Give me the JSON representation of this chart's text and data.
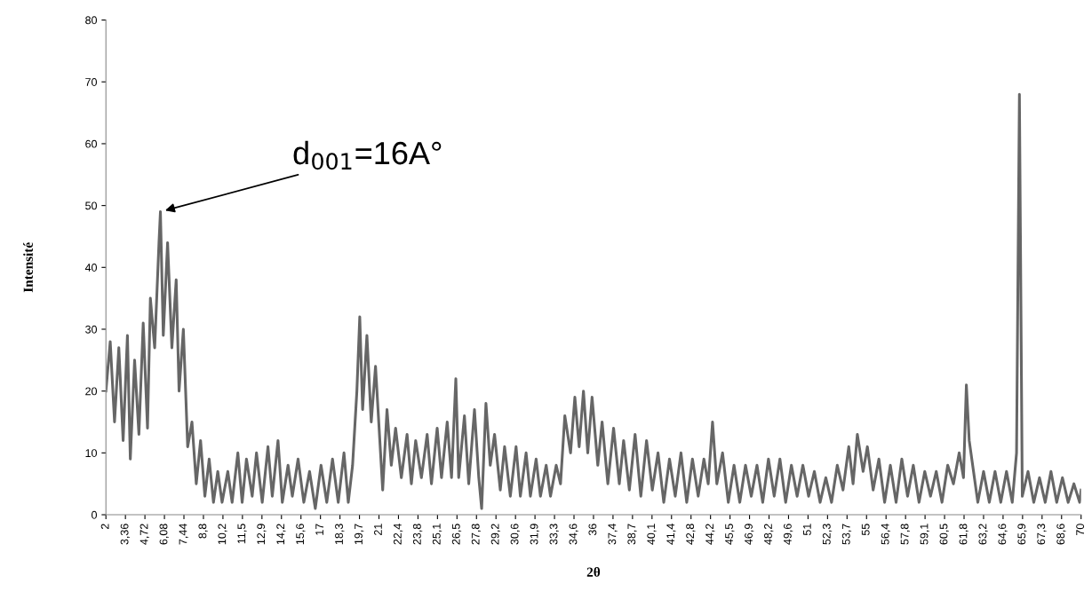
{
  "chart_data": {
    "type": "line",
    "xlabel": "2θ",
    "ylabel": "Intensité",
    "annotations": [
      {
        "text": "d$_{001}$=16A°",
        "x": 5.8,
        "y": 49
      }
    ],
    "xlim": [
      2,
      70
    ],
    "ylim": [
      0,
      80
    ],
    "xticks": [
      2,
      {
        "value": 3.36,
        "label": "3,36"
      },
      {
        "value": 4.72,
        "label": "4,72"
      },
      {
        "value": 6.08,
        "label": "6,08"
      },
      {
        "value": 7.44,
        "label": "7,44"
      },
      {
        "value": 8.8,
        "label": "8,8"
      },
      {
        "value": 10.16,
        "label": "10,2"
      },
      {
        "value": 11.52,
        "label": "11,5"
      },
      {
        "value": 12.88,
        "label": "12,9"
      },
      {
        "value": 14.24,
        "label": "14,2"
      },
      {
        "value": 15.6,
        "label": "15,6"
      },
      {
        "value": 16.96,
        "label": "17"
      },
      {
        "value": 18.32,
        "label": "18,3"
      },
      {
        "value": 19.68,
        "label": "19,7"
      },
      {
        "value": 21.04,
        "label": "21"
      },
      {
        "value": 22.4,
        "label": "22,4"
      },
      {
        "value": 23.76,
        "label": "23,8"
      },
      {
        "value": 25.12,
        "label": "25,1"
      },
      {
        "value": 26.48,
        "label": "26,5"
      },
      {
        "value": 27.84,
        "label": "27,8"
      },
      {
        "value": 29.2,
        "label": "29,2"
      },
      {
        "value": 30.56,
        "label": "30,6"
      },
      {
        "value": 31.92,
        "label": "31,9"
      },
      {
        "value": 33.28,
        "label": "33,3"
      },
      {
        "value": 34.64,
        "label": "34,6"
      },
      36,
      {
        "value": 37.36,
        "label": "37,4"
      },
      {
        "value": 38.72,
        "label": "38,7"
      },
      {
        "value": 40.08,
        "label": "40,1"
      },
      {
        "value": 41.44,
        "label": "41,4"
      },
      {
        "value": 42.8,
        "label": "42,8"
      },
      {
        "value": 44.16,
        "label": "44,2"
      },
      {
        "value": 45.52,
        "label": "45,5"
      },
      {
        "value": 46.88,
        "label": "46,9"
      },
      {
        "value": 48.24,
        "label": "48,2"
      },
      {
        "value": 49.6,
        "label": "49,6"
      },
      {
        "value": 50.96,
        "label": "51"
      },
      {
        "value": 52.32,
        "label": "52,3"
      },
      {
        "value": 53.68,
        "label": "53,7"
      },
      {
        "value": 55.04,
        "label": "55"
      },
      {
        "value": 56.4,
        "label": "56,4"
      },
      {
        "value": 57.76,
        "label": "57,8"
      },
      {
        "value": 59.12,
        "label": "59,1"
      },
      {
        "value": 60.48,
        "label": "60,5"
      },
      {
        "value": 61.84,
        "label": "61,8"
      },
      {
        "value": 63.2,
        "label": "63,2"
      },
      {
        "value": 64.56,
        "label": "64,6"
      },
      {
        "value": 65.92,
        "label": "65,9"
      },
      {
        "value": 67.28,
        "label": "67,3"
      },
      {
        "value": 68.64,
        "label": "68,6"
      },
      70
    ],
    "yticks": [
      0,
      10,
      20,
      30,
      40,
      50,
      60,
      70,
      80
    ],
    "series": [
      {
        "color": "#666666",
        "x": [
          2.0,
          2.3,
          2.6,
          2.9,
          3.2,
          3.5,
          3.7,
          4.0,
          4.3,
          4.6,
          4.9,
          5.1,
          5.4,
          5.7,
          5.8,
          6.0,
          6.3,
          6.6,
          6.9,
          7.1,
          7.4,
          7.7,
          8.0,
          8.3,
          8.6,
          8.9,
          9.2,
          9.5,
          9.8,
          10.1,
          10.5,
          10.8,
          11.2,
          11.5,
          11.8,
          12.2,
          12.5,
          12.9,
          13.3,
          13.6,
          14.0,
          14.3,
          14.7,
          15.0,
          15.4,
          15.8,
          16.2,
          16.6,
          17.0,
          17.4,
          17.8,
          18.2,
          18.6,
          18.9,
          19.2,
          19.5,
          19.7,
          19.9,
          20.2,
          20.5,
          20.8,
          21.1,
          21.3,
          21.6,
          21.9,
          22.2,
          22.6,
          23.0,
          23.3,
          23.6,
          24.0,
          24.4,
          24.7,
          25.1,
          25.4,
          25.8,
          26.1,
          26.4,
          26.6,
          27.0,
          27.3,
          27.7,
          28.0,
          28.2,
          28.5,
          28.8,
          29.1,
          29.5,
          29.8,
          30.2,
          30.6,
          30.9,
          31.3,
          31.6,
          32.0,
          32.3,
          32.7,
          33.0,
          33.4,
          33.7,
          34.0,
          34.4,
          34.7,
          35.0,
          35.3,
          35.6,
          35.9,
          36.3,
          36.6,
          37.0,
          37.4,
          37.8,
          38.1,
          38.5,
          38.9,
          39.3,
          39.7,
          40.1,
          40.5,
          40.9,
          41.3,
          41.7,
          42.1,
          42.5,
          42.9,
          43.3,
          43.7,
          44.0,
          44.3,
          44.6,
          45.0,
          45.4,
          45.8,
          46.2,
          46.6,
          47.0,
          47.4,
          47.8,
          48.2,
          48.6,
          49.0,
          49.4,
          49.8,
          50.2,
          50.6,
          51.0,
          51.4,
          51.8,
          52.2,
          52.6,
          53.0,
          53.4,
          53.8,
          54.1,
          54.4,
          54.8,
          55.1,
          55.5,
          55.9,
          56.3,
          56.7,
          57.1,
          57.5,
          57.9,
          58.3,
          58.7,
          59.1,
          59.5,
          59.9,
          60.3,
          60.7,
          61.1,
          61.5,
          61.8,
          62.0,
          62.2,
          62.5,
          62.8,
          63.2,
          63.6,
          64.0,
          64.4,
          64.8,
          65.2,
          65.5,
          65.7,
          65.9,
          66.3,
          66.7,
          67.1,
          67.5,
          67.9,
          68.3,
          68.7,
          69.1,
          69.5,
          69.9,
          70.0
        ],
        "values": [
          20,
          28,
          15,
          27,
          12,
          29,
          9,
          25,
          13,
          31,
          14,
          35,
          27,
          44,
          49,
          29,
          44,
          27,
          38,
          20,
          30,
          11,
          15,
          5,
          12,
          3,
          9,
          2,
          7,
          2,
          7,
          2,
          10,
          2,
          9,
          3,
          10,
          2,
          11,
          3,
          12,
          2,
          8,
          3,
          9,
          2,
          7,
          1,
          8,
          2,
          9,
          2,
          10,
          2,
          8,
          20,
          32,
          17,
          29,
          15,
          24,
          12,
          4,
          17,
          8,
          14,
          6,
          13,
          5,
          12,
          6,
          13,
          5,
          14,
          6,
          15,
          6,
          22,
          6,
          16,
          5,
          17,
          6,
          1,
          18,
          8,
          13,
          4,
          11,
          3,
          11,
          3,
          10,
          3,
          9,
          3,
          8,
          3,
          8,
          5,
          16,
          10,
          19,
          11,
          20,
          10,
          19,
          8,
          15,
          5,
          14,
          5,
          12,
          4,
          13,
          3,
          12,
          4,
          10,
          2,
          9,
          3,
          10,
          2,
          9,
          3,
          9,
          5,
          15,
          5,
          10,
          2,
          8,
          2,
          8,
          3,
          8,
          2,
          9,
          3,
          9,
          2,
          8,
          3,
          8,
          3,
          7,
          2,
          6,
          2,
          8,
          4,
          11,
          5,
          13,
          7,
          11,
          4,
          9,
          2,
          8,
          2,
          9,
          3,
          8,
          2,
          7,
          3,
          7,
          2,
          8,
          5,
          10,
          6,
          21,
          12,
          7,
          2,
          7,
          2,
          7,
          2,
          7,
          2,
          10,
          68,
          3,
          7,
          2,
          6,
          2,
          7,
          2,
          6,
          2,
          5,
          2,
          4
        ]
      }
    ]
  }
}
